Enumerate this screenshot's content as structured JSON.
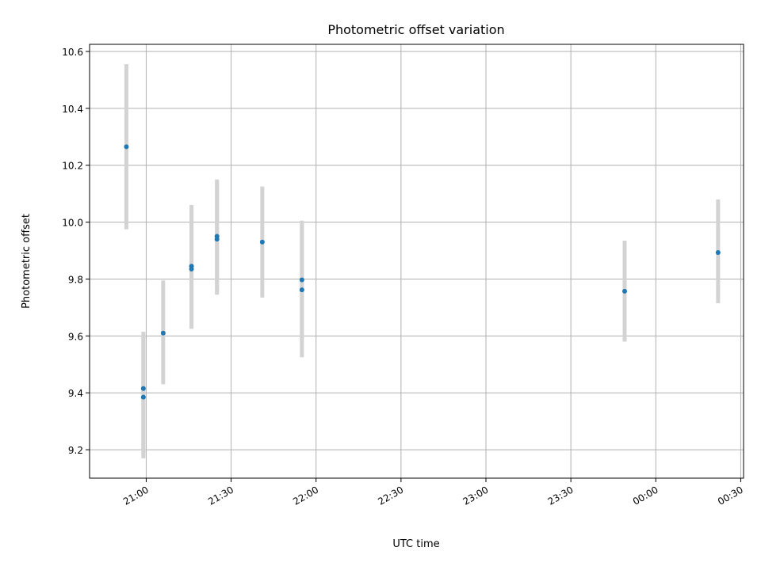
{
  "chart_data": {
    "type": "scatter",
    "title": "Photometric offset variation",
    "xlabel": "UTC time",
    "ylabel": "Photometric offset",
    "x_axis": "time",
    "x_tick_labels": [
      "21:00",
      "21:30",
      "22:00",
      "22:30",
      "23:00",
      "23:30",
      "00:00",
      "00:30"
    ],
    "x_ticks_minutes": [
      0,
      30,
      60,
      90,
      120,
      150,
      180,
      210
    ],
    "xlim_minutes": [
      -20,
      211
    ],
    "ylim": [
      9.1,
      10.625
    ],
    "y_ticks": [
      9.2,
      9.4,
      9.6,
      9.8,
      10.0,
      10.2,
      10.4,
      10.6
    ],
    "y_tick_labels": [
      "9.2",
      "9.4",
      "9.6",
      "9.8",
      "10.0",
      "10.2",
      "10.4",
      "10.6"
    ],
    "grid": true,
    "series": [
      {
        "marker_color": "#1f77b4",
        "errorbar_color": "#d3d3d3",
        "points": [
          {
            "x": "20:53",
            "y": 10.265,
            "err_low": 9.975,
            "err_high": 10.555
          },
          {
            "x": "20:59",
            "y": 9.415,
            "err_low": 9.17,
            "err_high": 9.615
          },
          {
            "x": "20:59",
            "y": 9.385,
            "err_low": 9.175,
            "err_high": 9.595
          },
          {
            "x": "21:06",
            "y": 9.61,
            "err_low": 9.43,
            "err_high": 9.795
          },
          {
            "x": "21:16",
            "y": 9.835,
            "err_low": 9.63,
            "err_high": 10.05
          },
          {
            "x": "21:16",
            "y": 9.845,
            "err_low": 9.625,
            "err_high": 10.06
          },
          {
            "x": "21:25",
            "y": 9.94,
            "err_low": 9.745,
            "err_high": 10.145
          },
          {
            "x": "21:25",
            "y": 9.95,
            "err_low": 9.755,
            "err_high": 10.15
          },
          {
            "x": "21:41",
            "y": 9.93,
            "err_low": 9.735,
            "err_high": 10.125
          },
          {
            "x": "21:55",
            "y": 9.797,
            "err_low": 9.59,
            "err_high": 10.005
          },
          {
            "x": "21:55",
            "y": 9.762,
            "err_low": 9.525,
            "err_high": 10.0
          },
          {
            "x": "23:49",
            "y": 9.757,
            "err_low": 9.58,
            "err_high": 9.935
          },
          {
            "x": "00:22",
            "y": 9.893,
            "err_low": 9.715,
            "err_high": 10.08
          }
        ]
      }
    ]
  }
}
